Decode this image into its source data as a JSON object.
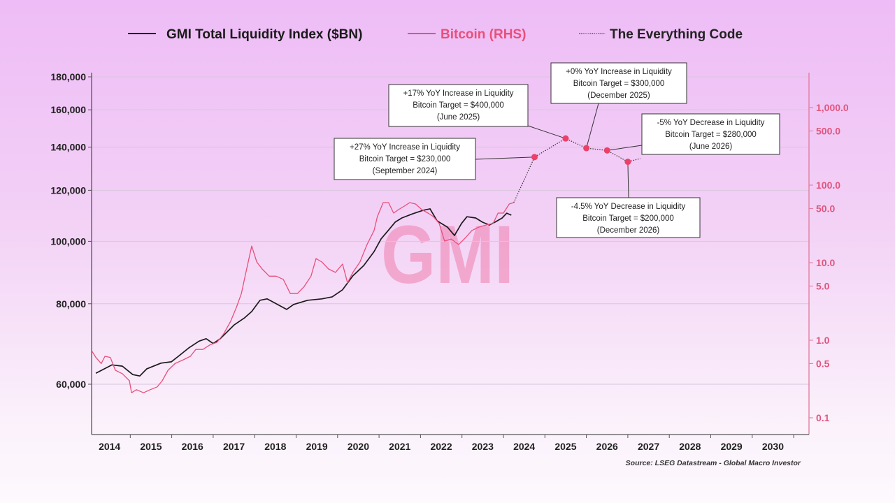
{
  "chart_data": {
    "type": "line",
    "title": "",
    "legend": {
      "placement": "top",
      "items": [
        "GMI Total Liquidity Index ($BN)",
        "Bitcoin (RHS)",
        "The Everything Code"
      ]
    },
    "x_axis": {
      "ticks": [
        "2014",
        "2015",
        "2016",
        "2017",
        "2018",
        "2019",
        "2020",
        "2021",
        "2022",
        "2023",
        "2024",
        "2025",
        "2026",
        "2027",
        "2028",
        "2029",
        "2030"
      ],
      "range": [
        2014,
        2031
      ]
    },
    "y_left": {
      "scale": "log",
      "range": [
        52000,
        180000
      ],
      "ticks": [
        60000,
        80000,
        100000,
        120000,
        140000,
        160000,
        180000
      ],
      "tick_labels": [
        "60,000",
        "80,000",
        "100,000",
        "120,000",
        "140,000",
        "160,000",
        "180,000"
      ]
    },
    "y_right": {
      "scale": "log",
      "range": [
        0.065,
        4000
      ],
      "ticks": [
        0.1,
        0.5,
        1,
        5,
        10,
        50,
        100,
        500,
        1000
      ],
      "tick_labels": [
        "0.1",
        "0.5",
        "1.0",
        "5.0",
        "10.0",
        "50.0",
        "100.0",
        "500.0",
        "1,000.0"
      ]
    },
    "grid": true,
    "series": [
      {
        "name": "GMI Total Liquidity Index ($BN)",
        "axis": "left",
        "color": "#1a1a1a",
        "x": [
          2014.17,
          2014.56,
          2014.81,
          2015.06,
          2015.23,
          2015.4,
          2015.74,
          2015.99,
          2016.16,
          2016.41,
          2016.66,
          2016.83,
          2017.0,
          2017.17,
          2017.51,
          2017.76,
          2017.93,
          2018.13,
          2018.3,
          2018.52,
          2018.77,
          2018.94,
          2019.28,
          2019.62,
          2019.87,
          2020.12,
          2020.37,
          2020.63,
          2020.88,
          2021.05,
          2021.22,
          2021.39,
          2021.55,
          2021.81,
          2022.06,
          2022.23,
          2022.4,
          2022.65,
          2022.82,
          2022.99,
          2023.12,
          2023.33,
          2023.49,
          2023.66,
          2023.8,
          2023.97,
          2024.08,
          2024.19
        ],
        "y": [
          62400,
          64300,
          64000,
          62100,
          61800,
          63400,
          64700,
          65000,
          66300,
          68300,
          70000,
          70600,
          69400,
          70600,
          74200,
          76100,
          77800,
          81000,
          81400,
          80000,
          78400,
          79800,
          81000,
          81400,
          82000,
          84100,
          88400,
          91700,
          96400,
          100900,
          103900,
          107100,
          108700,
          110300,
          111700,
          112300,
          107600,
          105200,
          102100,
          106600,
          109200,
          108700,
          107100,
          106000,
          107100,
          108700,
          110600,
          109800
        ]
      },
      {
        "name": "Bitcoin (RHS)",
        "axis": "right",
        "color": "#e8507a",
        "x": [
          2014.07,
          2014.17,
          2014.3,
          2014.39,
          2014.52,
          2014.64,
          2014.81,
          2014.98,
          2015.03,
          2015.15,
          2015.32,
          2015.48,
          2015.65,
          2015.77,
          2015.91,
          2016.08,
          2016.28,
          2016.45,
          2016.58,
          2016.75,
          2016.92,
          2017.09,
          2017.25,
          2017.42,
          2017.56,
          2017.68,
          2017.79,
          2017.93,
          2018.05,
          2018.18,
          2018.35,
          2018.52,
          2018.69,
          2018.86,
          2019.03,
          2019.19,
          2019.36,
          2019.48,
          2019.62,
          2019.78,
          2019.95,
          2020.12,
          2020.24,
          2020.37,
          2020.54,
          2020.71,
          2020.88,
          2020.96,
          2021.1,
          2021.23,
          2021.35,
          2021.47,
          2021.61,
          2021.74,
          2021.88,
          2022.03,
          2022.18,
          2022.31,
          2022.45,
          2022.58,
          2022.74,
          2022.92,
          2023.09,
          2023.24,
          2023.41,
          2023.58,
          2023.75,
          2023.87,
          2024.0,
          2024.14,
          2024.25
        ],
        "y": [
          0.73,
          0.6,
          0.5,
          0.62,
          0.6,
          0.41,
          0.37,
          0.3,
          0.21,
          0.23,
          0.21,
          0.23,
          0.25,
          0.3,
          0.41,
          0.5,
          0.56,
          0.62,
          0.76,
          0.76,
          0.87,
          0.94,
          1.2,
          1.75,
          2.65,
          4.0,
          7.5,
          16.4,
          10.2,
          8.3,
          6.7,
          6.7,
          6.1,
          4.0,
          4.0,
          4.9,
          6.7,
          11.3,
          10.2,
          8.3,
          7.5,
          9.6,
          5.5,
          7.5,
          10.2,
          17.1,
          26,
          39.3,
          59.5,
          59.5,
          43.6,
          48.4,
          53.7,
          59.5,
          57.1,
          48.4,
          43.6,
          39.3,
          32,
          19,
          20.2,
          17.1,
          21.1,
          26,
          28.8,
          30.6,
          32,
          43.6,
          43.6,
          57.1,
          59.5
        ]
      },
      {
        "name": "The Everything Code",
        "axis": "right",
        "color": "#333333",
        "style": "dotted",
        "x": [
          2024.25,
          2024.75,
          2025.5,
          2026.0,
          2026.5,
          2027.0,
          2027.3
        ],
        "y": [
          59.5,
          230,
          400,
          300,
          280,
          200,
          220
        ]
      }
    ],
    "targets": [
      {
        "x": 2024.75,
        "y": 230,
        "lines": [
          "+27% YoY Increase in Liquidity",
          "Bitcoin Target = $230,000",
          "(September 2024)"
        ]
      },
      {
        "x": 2025.5,
        "y": 400,
        "lines": [
          "+17% YoY Increase in Liquidity",
          "Bitcoin Target = $400,000",
          "(June 2025)"
        ]
      },
      {
        "x": 2026.0,
        "y": 300,
        "lines": [
          "+0% YoY Increase in Liquidity",
          "Bitcoin Target = $300,000",
          "(December 2025)"
        ]
      },
      {
        "x": 2026.5,
        "y": 280,
        "lines": [
          "-5% YoY Decrease in Liquidity",
          "Bitcoin Target = $280,000",
          "(June 2026)"
        ]
      },
      {
        "x": 2027.0,
        "y": 200,
        "lines": [
          "-4.5% YoY Decrease in Liquidity",
          "Bitcoin Target = $200,000",
          "(December 2026)"
        ]
      }
    ],
    "target_marker_color": "#ec3f6a",
    "watermark": "GMI",
    "source": "Source: LSEG Datastream - Global Macro Investor"
  }
}
